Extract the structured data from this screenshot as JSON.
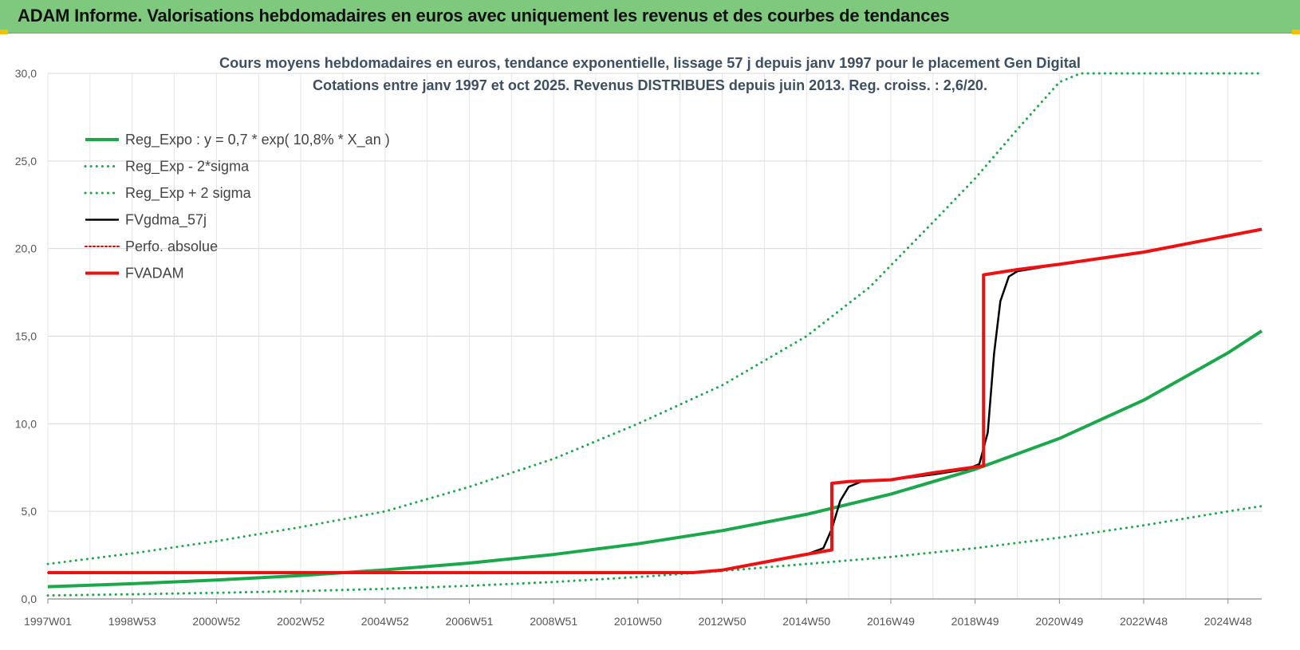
{
  "header": {
    "title": "ADAM Informe. Valorisations hebdomadaires en euros avec uniquement les revenus et des courbes de tendances"
  },
  "chart_data": {
    "type": "line",
    "title_line1": "Cours moyens hebdomadaires en euros, tendance exponentielle, lissage 57 j depuis janv 1997 pour le placement Gen Digital",
    "title_line2": "Cotations entre janv 1997 et oct 2025. Revenus DISTRIBUES depuis juin 2013. Reg. croiss. : 2,6/20.",
    "xlabel": "",
    "ylabel": "",
    "x_unit": "year",
    "xlim": [
      1997.0,
      2025.8
    ],
    "ylim": [
      0,
      30
    ],
    "y_ticks": [
      0,
      5,
      10,
      15,
      20,
      25,
      30
    ],
    "y_tick_labels": [
      "0,0",
      "5,0",
      "10,0",
      "15,0",
      "20,0",
      "25,0",
      "30,0"
    ],
    "x_ticks": [
      1997.0,
      1999.0,
      2001.0,
      2003.0,
      2005.0,
      2007.0,
      2009.0,
      2011.0,
      2013.0,
      2015.0,
      2017.0,
      2019.0,
      2021.0,
      2023.0,
      2025.0
    ],
    "x_tick_labels": [
      "1997W01",
      "1998W53",
      "2000W52",
      "2002W52",
      "2004W52",
      "2006W51",
      "2008W51",
      "2010W50",
      "2012W50",
      "2014W50",
      "2016W49",
      "2018W49",
      "2020W49",
      "2022W48",
      "2024W48"
    ],
    "grid": true,
    "legend_position": "top-left",
    "series": [
      {
        "name": "Reg_Expo : y = 0,7 * exp( 10,8% *  X_an )",
        "color": "#1aa84a",
        "style": "solid",
        "width": 4,
        "x": [
          1997.0,
          1999.0,
          2001.0,
          2003.0,
          2005.0,
          2007.0,
          2009.0,
          2011.0,
          2013.0,
          2015.0,
          2017.0,
          2019.0,
          2021.0,
          2023.0,
          2025.0,
          2025.8
        ],
        "y": [
          0.7,
          0.87,
          1.08,
          1.34,
          1.66,
          2.05,
          2.54,
          3.15,
          3.9,
          4.83,
          5.98,
          7.4,
          9.16,
          11.35,
          14.05,
          15.3
        ]
      },
      {
        "name": "Reg_Exp - 2*sigma",
        "color": "#1aa84a",
        "style": "dotted",
        "width": 3,
        "x": [
          1997.0,
          1999.0,
          2001.0,
          2003.0,
          2005.0,
          2007.0,
          2009.0,
          2011.0,
          2013.0,
          2015.0,
          2017.0,
          2019.0,
          2021.0,
          2023.0,
          2025.0,
          2025.8
        ],
        "y": [
          0.2,
          0.27,
          0.35,
          0.45,
          0.58,
          0.75,
          0.97,
          1.25,
          1.6,
          2.0,
          2.4,
          2.9,
          3.5,
          4.2,
          5.0,
          5.3
        ]
      },
      {
        "name": "Reg_Exp + 2 sigma",
        "color": "#1aa84a",
        "style": "dotted",
        "width": 3,
        "x": [
          1997.0,
          1999.0,
          2001.0,
          2003.0,
          2005.0,
          2007.0,
          2009.0,
          2011.0,
          2013.0,
          2015.0,
          2016.5,
          2018.0,
          2019.0,
          2020.0,
          2021.0,
          2021.5,
          2025.8
        ],
        "y": [
          2.0,
          2.6,
          3.3,
          4.1,
          5.0,
          6.4,
          8.0,
          10.0,
          12.2,
          15.0,
          17.8,
          21.5,
          24.0,
          26.8,
          29.5,
          30.0,
          30.0
        ]
      },
      {
        "name": "FVgdma_57j",
        "color": "#000000",
        "style": "solid",
        "width": 2.5,
        "x": [
          1997.0,
          2012.3,
          2013.0,
          2014.0,
          2015.0,
          2015.4,
          2015.6,
          2015.8,
          2016.0,
          2016.3,
          2017.0,
          2018.0,
          2018.8,
          2019.1,
          2019.3,
          2019.45,
          2019.6,
          2019.8,
          2020.0,
          2020.5,
          2021.0,
          2023.0,
          2025.8
        ],
        "y": [
          1.5,
          1.5,
          1.65,
          2.1,
          2.55,
          2.9,
          4.0,
          5.6,
          6.4,
          6.7,
          6.8,
          7.1,
          7.4,
          7.7,
          9.5,
          14.0,
          17.0,
          18.4,
          18.7,
          18.9,
          19.1,
          19.8,
          21.1
        ]
      },
      {
        "name": "Perfo. absolue",
        "color": "#e00000",
        "style": "dotted",
        "width": 2,
        "x": [
          1997.0,
          2012.3,
          2013.0,
          2014.0,
          2015.0,
          2015.6,
          2015.6,
          2016.0,
          2017.0,
          2018.0,
          2019.2,
          2019.2,
          2020.0,
          2021.0,
          2023.0,
          2025.8
        ],
        "y": [
          1.5,
          1.5,
          1.65,
          2.1,
          2.55,
          2.8,
          6.6,
          6.7,
          6.8,
          7.2,
          7.6,
          18.5,
          18.8,
          19.1,
          19.8,
          21.1
        ]
      },
      {
        "name": "FVADAM",
        "color": "#ee1111",
        "style": "solid",
        "width": 4,
        "x": [
          1997.0,
          2012.3,
          2013.0,
          2014.0,
          2015.0,
          2015.6,
          2015.6,
          2016.0,
          2017.0,
          2018.0,
          2019.2,
          2019.2,
          2020.0,
          2021.0,
          2023.0,
          2025.8
        ],
        "y": [
          1.5,
          1.5,
          1.65,
          2.1,
          2.55,
          2.8,
          6.6,
          6.7,
          6.8,
          7.2,
          7.6,
          18.5,
          18.8,
          19.1,
          19.8,
          21.1
        ]
      }
    ]
  }
}
